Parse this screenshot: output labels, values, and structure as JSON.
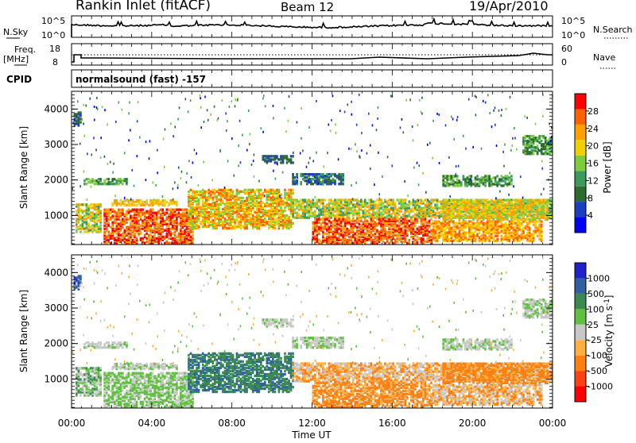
{
  "header": {
    "title": "Rankin Inlet (fitACF)",
    "beam": "Beam 12",
    "date": "19/Apr/2010"
  },
  "panels": {
    "nsky_label": "N.Sky",
    "nsky_ticks": [
      "10^5",
      "10^0"
    ],
    "nsearch_label": "N.Search",
    "nsearch_ticks": [
      "10^5",
      "10^0"
    ],
    "freq_label": "Freq.",
    "freq_unit": "[MHz]",
    "freq_ticks": [
      "18",
      "8"
    ],
    "nave_label": "Nave",
    "nave_ticks": [
      "60",
      "0"
    ],
    "cpid_label": "CPID",
    "cpid_text": "normalsound (fast) -157"
  },
  "colors": {
    "power_scale": [
      "#0000ff",
      "#1c3fbf",
      "#2e6b2e",
      "#3c9b5c",
      "#7ccc3c",
      "#f0d000",
      "#ffa000",
      "#ff6000",
      "#ff0000"
    ],
    "velocity_scale": [
      "#2020cc",
      "#3060a0",
      "#3a8a50",
      "#60c040",
      "#c8c8c8",
      "#ffb040",
      "#ff8010",
      "#ff4010",
      "#ff0000"
    ]
  },
  "chart_data": [
    {
      "type": "heatmap",
      "title": "",
      "xlabel": "Time UT",
      "ylabel": "Slant Range [km]",
      "x_ticks": [
        "00:00",
        "04:00",
        "08:00",
        "12:00",
        "16:00",
        "20:00",
        "00:00"
      ],
      "y_ticks": [
        1000,
        2000,
        3000,
        4000
      ],
      "xlim_hours": [
        0,
        24
      ],
      "ylim_km": [
        180,
        4500
      ],
      "colorbar": {
        "label": "Power [dB]",
        "ticks": [
          "4",
          "8",
          "12",
          "16",
          "20",
          "24",
          "28"
        ]
      }
    },
    {
      "type": "heatmap",
      "title": "",
      "xlabel": "Time UT",
      "ylabel": "Slant Range [km]",
      "x_ticks": [
        "00:00",
        "04:00",
        "08:00",
        "12:00",
        "16:00",
        "20:00",
        "00:00"
      ],
      "y_ticks": [
        1000,
        2000,
        3000,
        4000
      ],
      "xlim_hours": [
        0,
        24
      ],
      "ylim_km": [
        180,
        4500
      ],
      "colorbar": {
        "label": "Velocity [m s^-1]",
        "ticks": [
          "1000",
          "500",
          "100",
          "25",
          "-25",
          "-100",
          "-500",
          "-1000"
        ]
      }
    }
  ]
}
